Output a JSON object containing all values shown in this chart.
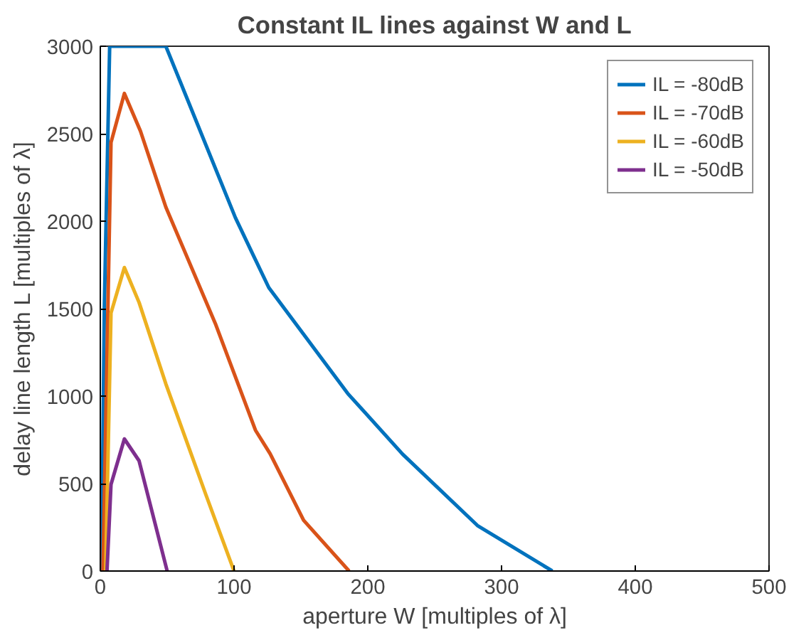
{
  "chart_data": {
    "type": "line",
    "title": "Constant IL lines against W and L",
    "xlabel": "aperture W [multiples of λ]",
    "ylabel": "delay line length L [multiples of λ]",
    "xlim": [
      0,
      500
    ],
    "ylim": [
      0,
      3000
    ],
    "xticks": [
      0,
      100,
      200,
      300,
      400,
      500
    ],
    "yticks": [
      0,
      500,
      1000,
      1500,
      2000,
      2500,
      3000
    ],
    "grid": false,
    "legend": "top right",
    "line_style": "solid",
    "series": [
      {
        "name": "IL = -80dB",
        "color": "#0072bd",
        "x": [
          1,
          3,
          7,
          49,
          101,
          115,
          126,
          185,
          226,
          282,
          338
        ],
        "values": [
          0,
          1500,
          3000,
          3000,
          2020,
          1795,
          1620,
          1015,
          668,
          260,
          0
        ]
      },
      {
        "name": "IL = -70dB",
        "color": "#d95319",
        "x": [
          2,
          8,
          18,
          30,
          49,
          86,
          116,
          127,
          152,
          186
        ],
        "values": [
          0,
          2450,
          2730,
          2515,
          2080,
          1415,
          805,
          670,
          290,
          0
        ]
      },
      {
        "name": "IL = -60dB",
        "color": "#edb120",
        "x": [
          4,
          8,
          18,
          29,
          49,
          79,
          100
        ],
        "values": [
          0,
          1475,
          1735,
          1535,
          1070,
          435,
          0
        ]
      },
      {
        "name": "IL = -50dB",
        "color": "#7e2f8e",
        "x": [
          5,
          8,
          18,
          29,
          50
        ],
        "values": [
          0,
          495,
          755,
          630,
          0
        ]
      }
    ]
  }
}
